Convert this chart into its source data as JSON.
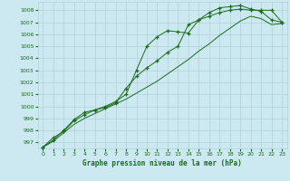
{
  "title": "Graphe pression niveau de la mer (hPa)",
  "bg_color": "#cce8f0",
  "line_color": "#1a6b1a",
  "grid_color": "#b0d0d8",
  "xlim": [
    -0.5,
    23.5
  ],
  "ylim": [
    996.5,
    1008.7
  ],
  "yticks": [
    997,
    998,
    999,
    1000,
    1001,
    1002,
    1003,
    1004,
    1005,
    1006,
    1007,
    1008
  ],
  "xticks": [
    0,
    1,
    2,
    3,
    4,
    5,
    6,
    7,
    8,
    9,
    10,
    11,
    12,
    13,
    14,
    15,
    16,
    17,
    18,
    19,
    20,
    21,
    22,
    23
  ],
  "series1": [
    996.6,
    997.4,
    997.9,
    998.8,
    999.3,
    999.7,
    1000.0,
    1000.4,
    1001.0,
    1003.0,
    1005.0,
    1005.8,
    1006.3,
    1006.2,
    1006.1,
    1007.2,
    1007.5,
    1007.8,
    1008.0,
    1008.1,
    1008.0,
    1008.0,
    1008.0,
    1007.0
  ],
  "series2": [
    996.6,
    997.2,
    998.0,
    998.9,
    999.5,
    999.7,
    999.9,
    1000.3,
    1001.5,
    1002.5,
    1003.2,
    1003.8,
    1004.5,
    1005.0,
    1006.8,
    1007.2,
    1007.8,
    1008.2,
    1008.3,
    1008.4,
    1008.1,
    1007.9,
    1007.2,
    1007.0
  ],
  "series3": [
    996.6,
    997.1,
    997.8,
    998.5,
    999.0,
    999.4,
    999.8,
    1000.2,
    1000.6,
    1001.1,
    1001.6,
    1002.1,
    1002.7,
    1003.3,
    1003.9,
    1004.6,
    1005.2,
    1005.9,
    1006.5,
    1007.1,
    1007.5,
    1007.3,
    1006.8,
    1006.9
  ]
}
